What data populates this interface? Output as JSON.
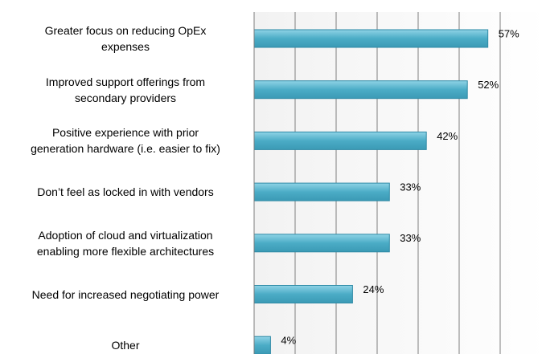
{
  "chart_data": {
    "type": "bar",
    "orientation": "horizontal",
    "categories": [
      "Greater focus on reducing OpEx\nexpenses",
      "Improved support offerings from\nsecondary providers",
      "Positive experience with prior\ngeneration hardware (i.e. easier to fix)",
      "Don’t feel as locked in with vendors",
      "Adoption of cloud and virtualization\nenabling more flexible architectures",
      "Need for increased negotiating power",
      "Other"
    ],
    "values": [
      57,
      52,
      42,
      33,
      33,
      24,
      4
    ],
    "value_labels": [
      "57%",
      "52%",
      "42%",
      "33%",
      "33%",
      "24%",
      "4%"
    ],
    "color": "#4bacc6",
    "xlim": [
      0,
      60
    ],
    "xticks": [
      0,
      10,
      20,
      30,
      40,
      50,
      60
    ],
    "grid": true
  }
}
